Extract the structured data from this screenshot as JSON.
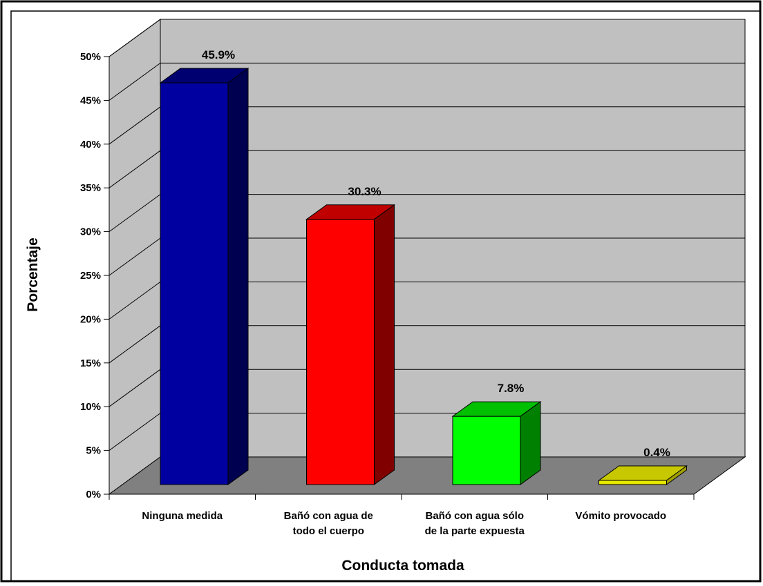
{
  "chart_data": {
    "type": "bar",
    "title": "",
    "xlabel": "Conducta tomada",
    "ylabel": "Porcentaje",
    "categories": [
      [
        "Ninguna medida"
      ],
      [
        "Bañó con agua de",
        "todo el cuerpo"
      ],
      [
        "Bañó con agua sólo",
        "de la parte expuesta"
      ],
      [
        "Vómito provocado"
      ]
    ],
    "values": [
      45.9,
      30.3,
      7.8,
      0.4
    ],
    "value_labels": [
      "45.9%",
      "30.3%",
      "7.8%",
      "0.4%"
    ],
    "ylim": [
      0,
      50
    ],
    "yticks": [
      0,
      5,
      10,
      15,
      20,
      25,
      30,
      35,
      40,
      45,
      50
    ],
    "ytick_labels": [
      "0%",
      "5%",
      "10%",
      "15%",
      "20%",
      "25%",
      "30%",
      "35%",
      "40%",
      "45%",
      "50%"
    ],
    "grid": true,
    "legend": "none",
    "colors": {
      "bars": [
        "#0000a0",
        "#ff0000",
        "#00ff00",
        "#e8e800"
      ],
      "bar_tops": [
        "#000070",
        "#c00000",
        "#00c000",
        "#c8c800"
      ],
      "bar_sides": [
        "#000050",
        "#800000",
        "#008000",
        "#a0a000"
      ],
      "wall": "#c0c0c0",
      "floor": "#808080"
    }
  }
}
